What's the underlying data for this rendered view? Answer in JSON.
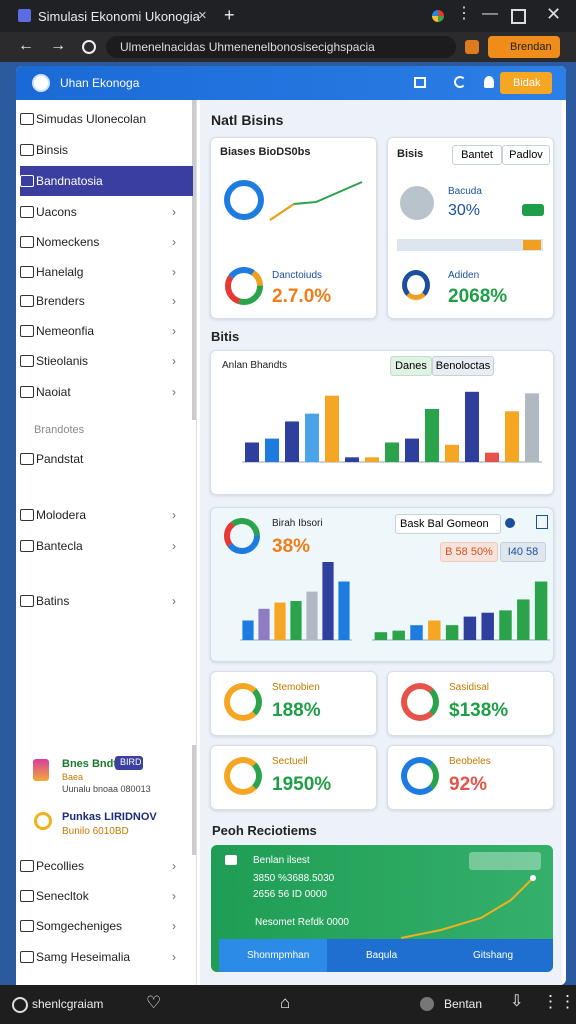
{
  "browser": {
    "tab_title": "Simulasi Ekonomi Ukonogia",
    "address": "Ulmenelnacidas Uhmenenelbonosisecighspacia",
    "profile_button": "Brendan"
  },
  "app": {
    "title": "Uhan Ekonoga",
    "header_button": "Bidak"
  },
  "sidebar": {
    "items": [
      "Simudas Ulonecolan",
      "Binsis",
      "Bandnatosia",
      "Uacons",
      "Nomeckens",
      "Hanelalg",
      "Brenders",
      "Nemeonfia",
      "Stieolanis",
      "Naoiat"
    ],
    "section": "Brandotes",
    "items2": [
      "Pandstat",
      "Molodera",
      "Bantecla",
      "Batins"
    ],
    "promo": {
      "title": "Bnes Bndt",
      "badge": "BIRD",
      "sub": "Baea",
      "text": "Uunalu bnoaa 080013",
      "title2": "Punkas LIRIDNOV",
      "sub2": "Bunilo 6010BD"
    },
    "footer_items": [
      "Pecollies",
      "Senecltok",
      "Somgecheniges",
      "Samg Heseimalia"
    ]
  },
  "main": {
    "heading": "Natl Bisins",
    "card1": {
      "title": "Biases BioDS0bs",
      "metric_label": "Danctoiuds",
      "metric_value": "2.7.0%"
    },
    "card2": {
      "title": "Bisis",
      "button1": "Bantet",
      "button2": "Padlov",
      "metric_label": "Bacuda",
      "metric_value": "30%"
    },
    "card3": {
      "metric_label": "Adiden",
      "metric_value": "2068%"
    },
    "section2": "Bitis",
    "stats": [
      {
        "label": "Stemobien",
        "value": "188%"
      },
      {
        "label": "Sasidisal",
        "value": "$138%"
      },
      {
        "label": "Sectuell",
        "value": "1950%"
      },
      {
        "label": "Beobeles",
        "value": "92%"
      }
    ],
    "section3": "Peoh Reciotiems",
    "banner": {
      "title": "Benlan ilsest",
      "line1": "3850 %3688.5030",
      "line2": "2656 56 ID 0000",
      "line3": "Nesomet Refdk 0000",
      "tab1": "Shonmpmhan",
      "tab2": "Baqula",
      "tab3": "Gitshang"
    }
  },
  "charts": [
    {
      "title": "Anlan Bhandts",
      "button1": "Danes",
      "button2": "Benoloctas",
      "ylim": [
        0,
        100
      ],
      "bars": [
        {
          "value": 25,
          "color": "#2e3f9e"
        },
        {
          "value": 30,
          "color": "#1e7be0"
        },
        {
          "value": 52,
          "color": "#2e3f9e"
        },
        {
          "value": 62,
          "color": "#4aa3e8"
        },
        {
          "value": 85,
          "color": "#f5a623"
        },
        {
          "value": 6,
          "color": "#2e3f9e"
        },
        {
          "value": 6,
          "color": "#f5a623"
        },
        {
          "value": 25,
          "color": "#2aa34a"
        },
        {
          "value": 30,
          "color": "#2e3f9e"
        },
        {
          "value": 68,
          "color": "#2aa34a"
        },
        {
          "value": 22,
          "color": "#f5a623"
        },
        {
          "value": 90,
          "color": "#2e3f9e"
        },
        {
          "value": 12,
          "color": "#e5534b"
        },
        {
          "value": 65,
          "color": "#f5a623"
        },
        {
          "value": 88,
          "color": "#b0b8c2"
        }
      ]
    },
    {
      "title": "Birah Ibsori",
      "metric_value": "38%",
      "search": "Bask Bal Gomeon",
      "chip1": "B 58 50%",
      "chip2": "I40 58",
      "ylim": [
        0,
        100
      ],
      "bars": [
        {
          "value": 25,
          "color": "#1e7be0"
        },
        {
          "value": 40,
          "color": "#8e7cc3"
        },
        {
          "value": 48,
          "color": "#f5a623"
        },
        {
          "value": 50,
          "color": "#2aa34a"
        },
        {
          "value": 62,
          "color": "#b0b8c2"
        },
        {
          "value": 100,
          "color": "#2e3f9e"
        },
        {
          "value": 75,
          "color": "#1e7be0"
        }
      ]
    },
    {
      "ylim": [
        0,
        100
      ],
      "bars": [
        {
          "value": 10,
          "color": "#2aa34a"
        },
        {
          "value": 12,
          "color": "#2aa34a"
        },
        {
          "value": 19,
          "color": "#1e7be0"
        },
        {
          "value": 25,
          "color": "#f5a623"
        },
        {
          "value": 19,
          "color": "#2aa34a"
        },
        {
          "value": 30,
          "color": "#2e3f9e"
        },
        {
          "value": 35,
          "color": "#2e3f9e"
        },
        {
          "value": 38,
          "color": "#2aa34a"
        },
        {
          "value": 52,
          "color": "#2aa34a"
        },
        {
          "value": 75,
          "color": "#2aa34a"
        }
      ]
    }
  ],
  "bottom_bar": {
    "left": "shenlcgraiam",
    "right": "Bentan"
  }
}
